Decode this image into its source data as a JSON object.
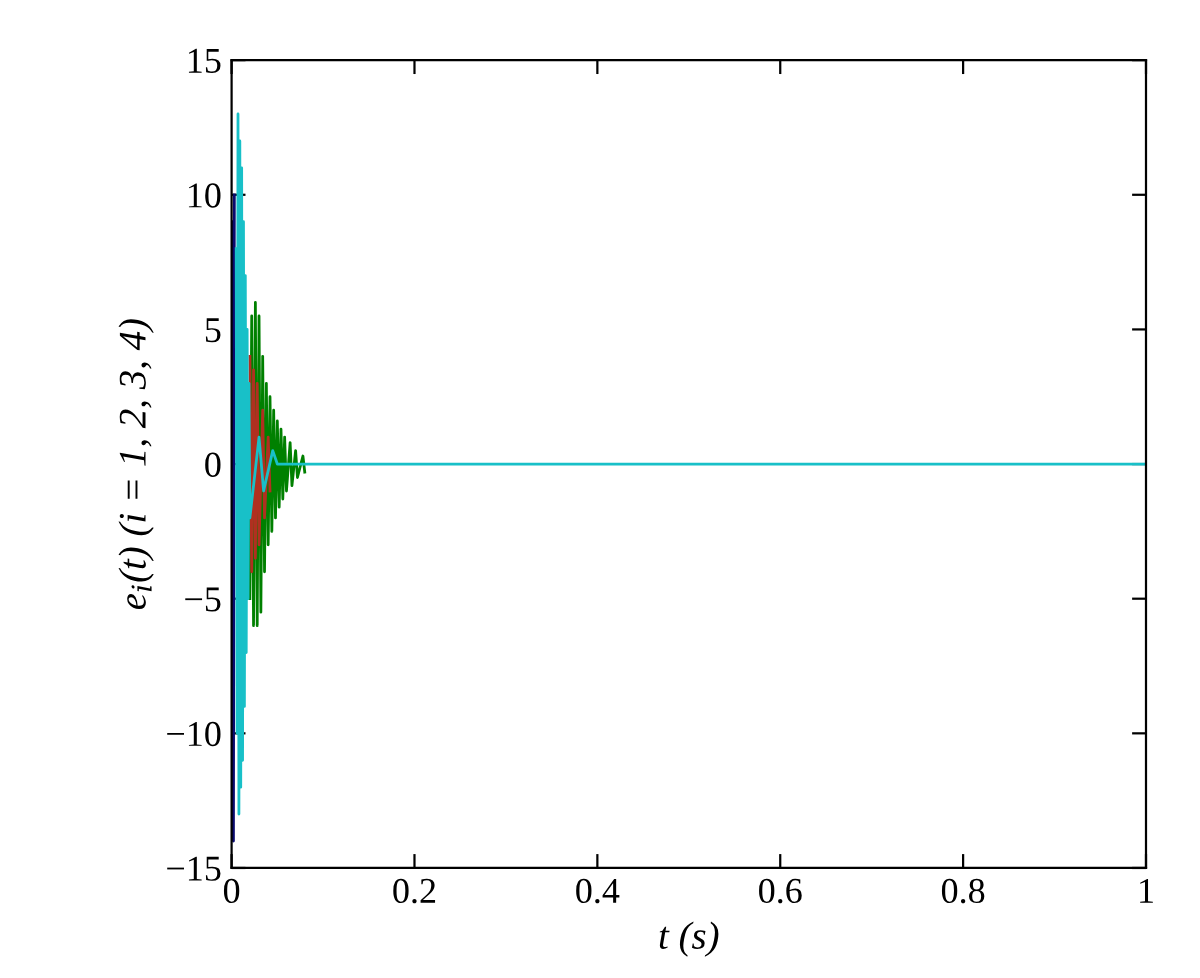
{
  "chart_data": {
    "type": "line",
    "xlabel": "t (s)",
    "ylabel": "e$_{i}$(t) (i = 1, 2, 3, 4)",
    "xlim": [
      0,
      1
    ],
    "xticks": [
      0,
      0.2,
      0.4,
      0.6,
      0.8,
      1
    ],
    "ylim": [
      -15,
      15
    ],
    "yticks": [
      {
        "value": -15,
        "label": "−15"
      },
      {
        "value": -10,
        "label": "−10"
      },
      {
        "value": -5,
        "label": "−5"
      },
      0,
      5,
      10,
      15
    ],
    "grid": false,
    "legend": false,
    "marker": "none",
    "line_style": "solid",
    "series": [
      {
        "color": "#0a0a6e",
        "x": [
          0.001,
          0.002,
          0.003
        ],
        "values": [
          9,
          -14,
          10
        ]
      },
      {
        "color": "#008000",
        "x": [
          0.02,
          0.022,
          0.024,
          0.026,
          0.028,
          0.03,
          0.032,
          0.034,
          0.036,
          0.038,
          0.04,
          0.042,
          0.044,
          0.046,
          0.048,
          0.05,
          0.052,
          0.054,
          0.056,
          0.058,
          0.06,
          0.064,
          0.066,
          0.07,
          0.072,
          0.078,
          0.08
        ],
        "values": [
          -5,
          5.5,
          -6,
          6,
          -6,
          5.5,
          -5.5,
          4,
          -4,
          3,
          -3,
          2.5,
          -2.5,
          2,
          -2,
          1.6,
          -1.6,
          1.3,
          -1.3,
          1,
          -1,
          0.8,
          -0.8,
          0.5,
          -0.5,
          0.3,
          -0.3
        ]
      },
      {
        "color": "#b03020",
        "x": [
          0.02,
          0.022,
          0.024,
          0.026,
          0.028,
          0.03,
          0.034,
          0.036,
          0.04,
          0.042
        ],
        "values": [
          4,
          -4,
          3.5,
          -3.5,
          3,
          -3,
          2,
          -2,
          1,
          -1
        ]
      },
      {
        "color": "#18c0c8",
        "x": [
          0.005,
          0.006,
          0.007,
          0.008,
          0.009,
          0.01,
          0.011,
          0.012,
          0.013,
          0.014,
          0.015,
          0.016,
          0.017,
          0.018,
          0.019,
          0.02,
          0.03,
          0.035,
          0.045,
          0.05,
          1
        ],
        "values": [
          8,
          -10,
          13,
          -13,
          12,
          -12,
          11,
          -11,
          9,
          -9,
          7,
          -7,
          5,
          -5,
          3,
          -2,
          1,
          -1,
          0.5,
          0,
          0
        ]
      }
    ]
  }
}
